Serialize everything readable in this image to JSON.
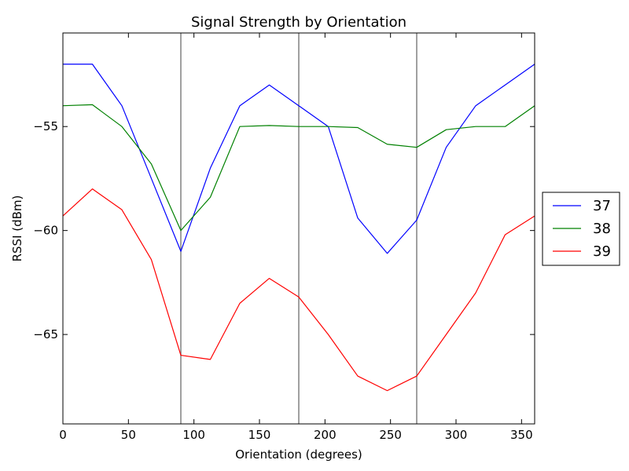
{
  "chart_data": {
    "type": "line",
    "title": "Signal Strength by Orientation",
    "xlabel": "Orientation (degrees)",
    "ylabel": "RSSI (dBm)",
    "xlim": [
      0,
      360
    ],
    "ylim": [
      -69.3,
      -50.5
    ],
    "xticks": [
      0,
      50,
      100,
      150,
      200,
      250,
      300,
      350
    ],
    "yticks": [
      -55,
      -60,
      -65
    ],
    "ytick_labels": [
      "−55",
      "−60",
      "−65"
    ],
    "vlines": [
      90,
      180,
      270
    ],
    "legend_position": "right-outside",
    "grid": false,
    "x": [
      0,
      22.5,
      45,
      67.5,
      90,
      112.5,
      135,
      157.5,
      180,
      202.5,
      225,
      247.5,
      270,
      292.5,
      315,
      337.5,
      360
    ],
    "series": [
      {
        "name": "37",
        "color": "#0000ff",
        "values": [
          -52,
          -52,
          -54,
          -57.5,
          -61,
          -57,
          -54,
          -53,
          -54,
          -55,
          -59.4,
          -61.1,
          -59.5,
          -56,
          -54,
          -53,
          -52
        ]
      },
      {
        "name": "38",
        "color": "#008000",
        "values": [
          -54,
          -53.95,
          -55,
          -56.8,
          -60,
          -58.4,
          -55,
          -54.95,
          -55,
          -55,
          -55.05,
          -55.85,
          -56,
          -55.15,
          -55,
          -55,
          -54
        ]
      },
      {
        "name": "39",
        "color": "#ff0000",
        "values": [
          -59.3,
          -58,
          -59,
          -61.4,
          -66,
          -66.2,
          -63.5,
          -62.3,
          -63.2,
          -65,
          -67,
          -67.7,
          -67,
          -65,
          -63,
          -60.2,
          -59.3
        ]
      }
    ]
  }
}
